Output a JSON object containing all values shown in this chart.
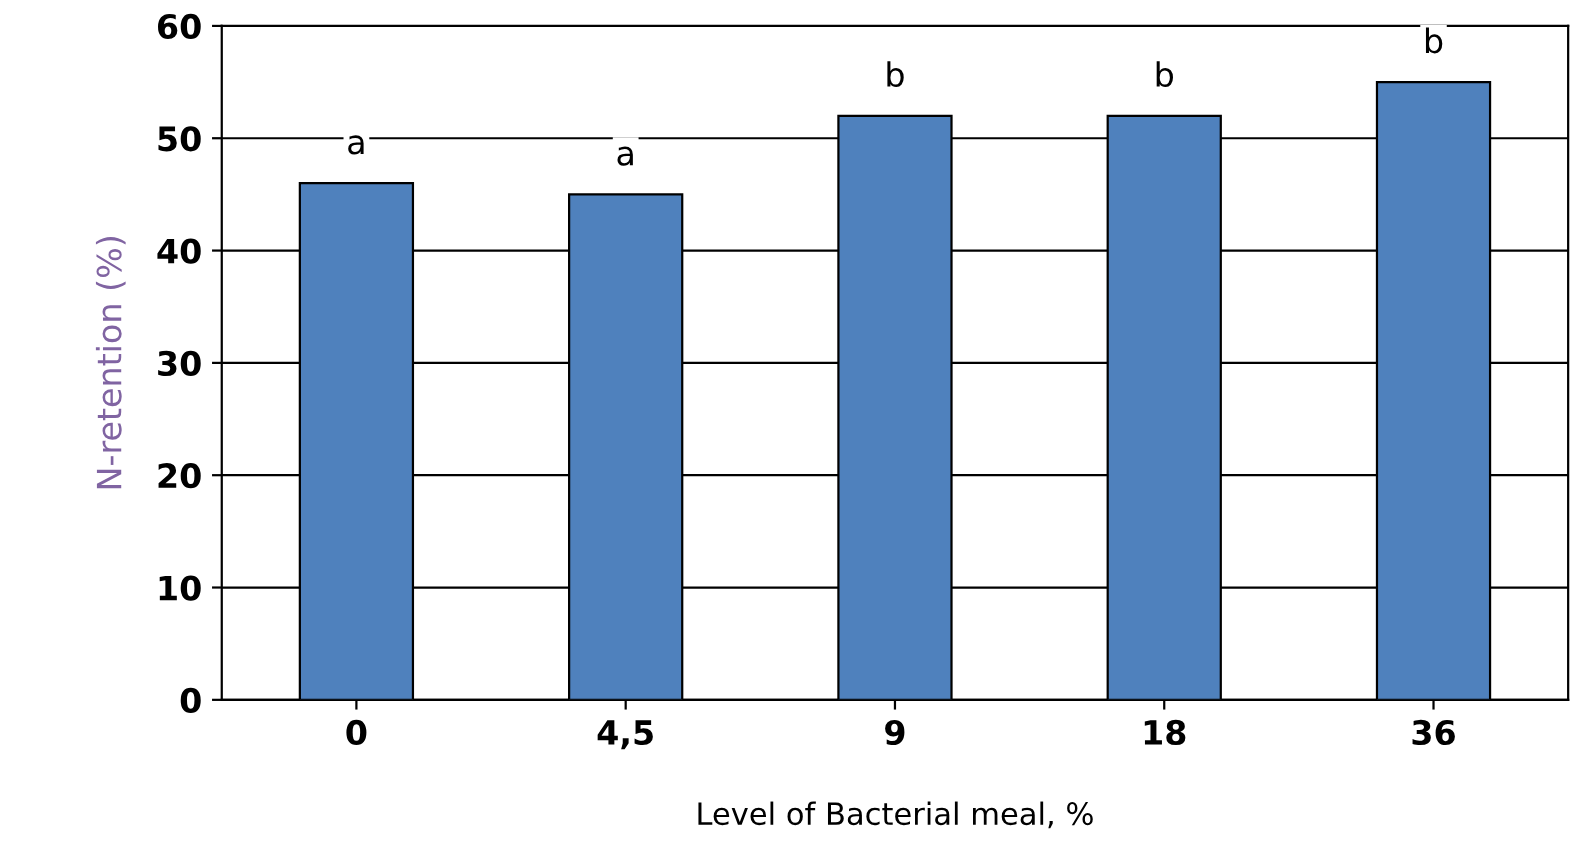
{
  "chart_data": {
    "type": "bar",
    "xlabel": "Level of Bacterial meal, %",
    "ylabel": "N-retention (%)",
    "categories": [
      "0",
      "4,5",
      "9",
      "18",
      "36"
    ],
    "values": [
      46,
      45,
      52,
      52,
      55
    ],
    "color": "#4f81bd",
    "ylim": [
      0,
      60
    ],
    "yticks": [
      0,
      10,
      20,
      30,
      40,
      50,
      60
    ],
    "grid": "y",
    "annotations": [
      "a",
      "a",
      "b",
      "b",
      "b"
    ]
  }
}
